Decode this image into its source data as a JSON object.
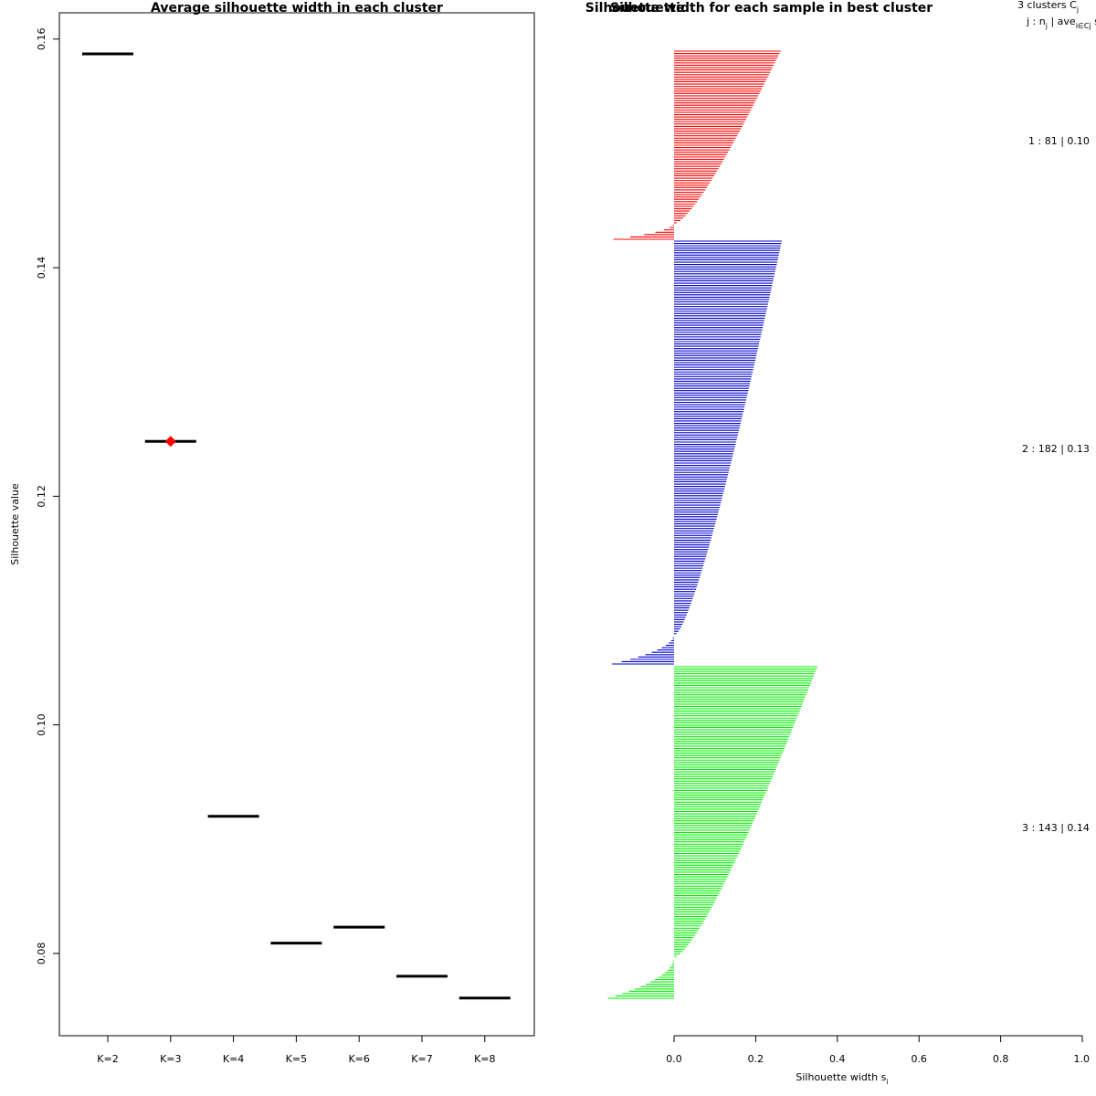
{
  "chart_data": [
    {
      "type": "scatter",
      "title": "Average silhouette width in each cluster",
      "xlabel": "",
      "ylabel": "Silhouette value",
      "categories": [
        "K=2",
        "K=3",
        "K=4",
        "K=5",
        "K=6",
        "K=7",
        "K=8"
      ],
      "values": [
        0.1587,
        0.1248,
        0.092,
        0.0809,
        0.0823,
        0.078,
        0.0761
      ],
      "best_index": 1,
      "highlight_color": "#ff0000",
      "y_ticks": [
        "0.08",
        "0.10",
        "0.12",
        "0.14",
        "0.16"
      ],
      "y_tick_values": [
        0.08,
        0.1,
        0.12,
        0.14,
        0.16
      ],
      "ylim": [
        0.0728,
        0.1623
      ]
    },
    {
      "type": "bar",
      "orientation": "horizontal",
      "title": "Silhouette width for each sample in best cluster",
      "title_overlap": "Silhouette",
      "xlabel": "Silhouette width s",
      "xlabel_sub": "i",
      "x_ticks": [
        "0.0",
        "0.2",
        "0.4",
        "0.6",
        "0.8",
        "1.0"
      ],
      "x_tick_values": [
        0,
        0.2,
        0.4,
        0.6,
        0.8,
        1.0
      ],
      "xlim": [
        -0.16,
        1.0
      ],
      "header_line1": "3  clusters  C",
      "header_line1_sub": "j",
      "header_line2": "j :  n",
      "header_line2_sub": "j",
      "header_line2_rest": " | ave",
      "header_line2_sub2": "i∈Cj",
      "header_line2_tail": "  s",
      "clusters": [
        {
          "id": 1,
          "n": 81,
          "avg_width": "0.10",
          "color": "#ff0000",
          "label": "1 :   81  |  0.10",
          "max_width": 0.255,
          "min_width": -0.148,
          "n_negative": 7
        },
        {
          "id": 2,
          "n": 182,
          "avg_width": "0.13",
          "color": "#0000cc",
          "label": "2 :   182  |  0.13",
          "max_width": 0.258,
          "min_width": -0.152,
          "n_negative": 13
        },
        {
          "id": 3,
          "n": 143,
          "avg_width": "0.14",
          "color": "#00ee00",
          "label": "3 :   143  |  0.14",
          "max_width": 0.345,
          "min_width": -0.162,
          "n_negative": 18
        }
      ]
    }
  ]
}
